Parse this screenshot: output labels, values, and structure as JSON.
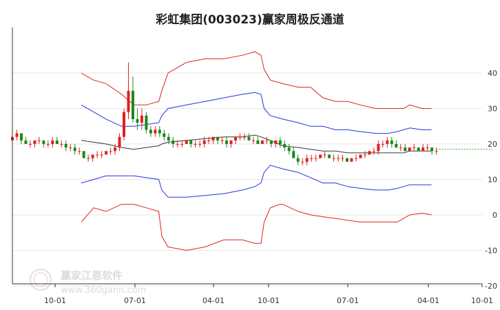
{
  "chart_data": {
    "type": "line",
    "title": "彩虹集团(003023)赢家周极反通道",
    "x_tick_labels": [
      "10-01",
      "07-01",
      "04-01",
      "10-01",
      "07-01",
      "04-01",
      "10-01"
    ],
    "y_ticks": [
      40,
      30,
      20,
      10,
      0,
      -10,
      -20
    ],
    "y_tick_labels": [
      "40",
      "30",
      "20",
      "10",
      "0",
      "-10",
      "-20"
    ],
    "ylim": [
      -20,
      46
    ],
    "grid": true,
    "current_price": 18.5,
    "watermark": {
      "name": "赢家江恩软件",
      "url": "www.360gann.com"
    },
    "series": [
      {
        "color": "#e02020",
        "points": [
          [
            0,
            40
          ],
          [
            4,
            38
          ],
          [
            8,
            37
          ],
          [
            13,
            34
          ],
          [
            17,
            31
          ],
          [
            21,
            31
          ],
          [
            25,
            32
          ],
          [
            26,
            35
          ],
          [
            28,
            40
          ],
          [
            34,
            43
          ],
          [
            40,
            44
          ],
          [
            46,
            44
          ],
          [
            52,
            45
          ],
          [
            54,
            45.5
          ],
          [
            56,
            46
          ],
          [
            58,
            45
          ],
          [
            59,
            41
          ],
          [
            61,
            38
          ],
          [
            65,
            37
          ],
          [
            70,
            36
          ],
          [
            74,
            36
          ],
          [
            78,
            33
          ],
          [
            82,
            32
          ],
          [
            86,
            32
          ],
          [
            90,
            31
          ],
          [
            95,
            30
          ],
          [
            99,
            30
          ],
          [
            102,
            30
          ],
          [
            104,
            30
          ],
          [
            106,
            31
          ],
          [
            110,
            30
          ],
          [
            113,
            30
          ]
        ]
      },
      {
        "color": "#2233dd",
        "points": [
          [
            0,
            31
          ],
          [
            4,
            29
          ],
          [
            8,
            27
          ],
          [
            13,
            25
          ],
          [
            17,
            25
          ],
          [
            21,
            25.5
          ],
          [
            25,
            26
          ],
          [
            26,
            28
          ],
          [
            28,
            30
          ],
          [
            34,
            31
          ],
          [
            40,
            32
          ],
          [
            46,
            33
          ],
          [
            52,
            34
          ],
          [
            56,
            34.5
          ],
          [
            58,
            34
          ],
          [
            59,
            30
          ],
          [
            61,
            28
          ],
          [
            65,
            27
          ],
          [
            70,
            26
          ],
          [
            74,
            25
          ],
          [
            78,
            25
          ],
          [
            82,
            24
          ],
          [
            86,
            24
          ],
          [
            90,
            23.5
          ],
          [
            95,
            23
          ],
          [
            99,
            23
          ],
          [
            102,
            23.5
          ],
          [
            104,
            24
          ],
          [
            106,
            24.5
          ],
          [
            110,
            24
          ],
          [
            113,
            24
          ]
        ]
      },
      {
        "color": "#333333",
        "points": [
          [
            0,
            21
          ],
          [
            4,
            20.5
          ],
          [
            8,
            20
          ],
          [
            13,
            19
          ],
          [
            17,
            18.5
          ],
          [
            21,
            19
          ],
          [
            25,
            19.5
          ],
          [
            26,
            20
          ],
          [
            28,
            20.5
          ],
          [
            34,
            21
          ],
          [
            40,
            21.5
          ],
          [
            46,
            22
          ],
          [
            52,
            22
          ],
          [
            56,
            22.5
          ],
          [
            58,
            22
          ],
          [
            61,
            21
          ],
          [
            65,
            19.5
          ],
          [
            70,
            19
          ],
          [
            74,
            18.5
          ],
          [
            78,
            18
          ],
          [
            82,
            18
          ],
          [
            86,
            17.5
          ],
          [
            90,
            17.5
          ],
          [
            95,
            17.5
          ],
          [
            99,
            17.5
          ],
          [
            102,
            17.5
          ],
          [
            104,
            17.5
          ],
          [
            106,
            18
          ],
          [
            110,
            18
          ],
          [
            113,
            18
          ]
        ]
      },
      {
        "color": "#2233dd",
        "points": [
          [
            0,
            9
          ],
          [
            4,
            10
          ],
          [
            8,
            11
          ],
          [
            13,
            11
          ],
          [
            17,
            11
          ],
          [
            21,
            10.5
          ],
          [
            25,
            10
          ],
          [
            26,
            7
          ],
          [
            28,
            5
          ],
          [
            34,
            5
          ],
          [
            40,
            5.5
          ],
          [
            46,
            6
          ],
          [
            52,
            7
          ],
          [
            56,
            8
          ],
          [
            58,
            9
          ],
          [
            59,
            12
          ],
          [
            61,
            14
          ],
          [
            65,
            13
          ],
          [
            70,
            12
          ],
          [
            74,
            10.5
          ],
          [
            78,
            9
          ],
          [
            82,
            9
          ],
          [
            86,
            8
          ],
          [
            90,
            7.5
          ],
          [
            95,
            7
          ],
          [
            99,
            7
          ],
          [
            102,
            7.5
          ],
          [
            104,
            8
          ],
          [
            106,
            8.5
          ],
          [
            110,
            8.5
          ],
          [
            113,
            8.5
          ]
        ]
      },
      {
        "color": "#e02020",
        "points": [
          [
            0,
            -2
          ],
          [
            4,
            2
          ],
          [
            8,
            1
          ],
          [
            13,
            3
          ],
          [
            17,
            3
          ],
          [
            21,
            2
          ],
          [
            25,
            1
          ],
          [
            26,
            -6
          ],
          [
            28,
            -9
          ],
          [
            34,
            -10
          ],
          [
            40,
            -9
          ],
          [
            46,
            -7
          ],
          [
            52,
            -7
          ],
          [
            56,
            -8
          ],
          [
            58,
            -8
          ],
          [
            59,
            -2
          ],
          [
            61,
            2
          ],
          [
            64,
            3
          ],
          [
            65,
            3
          ],
          [
            70,
            1
          ],
          [
            74,
            0
          ],
          [
            78,
            -0.5
          ],
          [
            82,
            -1
          ],
          [
            86,
            -1.5
          ],
          [
            90,
            -2
          ],
          [
            95,
            -2
          ],
          [
            99,
            -2
          ],
          [
            102,
            -2
          ],
          [
            104,
            -1
          ],
          [
            106,
            0
          ],
          [
            110,
            0.5
          ],
          [
            113,
            0
          ]
        ]
      }
    ],
    "candles": [
      [
        0,
        21,
        23,
        20,
        22
      ],
      [
        1,
        22,
        24,
        21,
        23
      ],
      [
        2,
        23,
        23,
        20,
        21
      ],
      [
        3,
        21,
        22,
        20,
        20
      ],
      [
        4,
        20,
        21,
        19,
        20
      ],
      [
        5,
        20,
        21,
        19,
        21
      ],
      [
        6,
        21,
        22,
        20,
        21
      ],
      [
        7,
        21,
        21,
        19,
        20
      ],
      [
        8,
        20,
        21,
        19,
        20
      ],
      [
        9,
        20,
        22,
        19,
        21
      ],
      [
        10,
        21,
        22,
        20,
        20
      ],
      [
        11,
        20,
        21,
        19,
        20
      ],
      [
        12,
        20,
        21,
        18,
        19
      ],
      [
        13,
        19,
        20,
        18,
        19
      ],
      [
        14,
        19,
        20,
        17,
        18
      ],
      [
        15,
        18,
        19,
        17,
        18
      ],
      [
        16,
        18,
        18,
        16,
        16
      ],
      [
        17,
        16,
        17,
        15,
        16
      ],
      [
        18,
        16,
        17,
        15,
        17
      ],
      [
        19,
        17,
        18,
        16,
        17
      ],
      [
        20,
        17,
        18,
        16,
        17
      ],
      [
        21,
        17,
        18,
        17,
        18
      ],
      [
        22,
        18,
        19,
        17,
        18
      ],
      [
        23,
        18,
        20,
        17,
        19
      ],
      [
        24,
        19,
        23,
        18,
        22
      ],
      [
        25,
        22,
        30,
        21,
        29
      ],
      [
        26,
        29,
        43,
        27,
        35
      ],
      [
        27,
        35,
        39,
        26,
        27
      ],
      [
        28,
        27,
        30,
        24,
        26
      ],
      [
        29,
        26,
        30,
        24,
        28
      ],
      [
        30,
        28,
        29,
        23,
        24
      ],
      [
        31,
        24,
        25,
        22,
        23
      ],
      [
        32,
        23,
        25,
        22,
        24
      ],
      [
        33,
        24,
        25,
        22,
        23
      ],
      [
        34,
        23,
        24,
        21,
        22
      ],
      [
        35,
        22,
        23,
        20,
        21
      ],
      [
        36,
        21,
        22,
        19,
        20
      ],
      [
        37,
        20,
        21,
        19,
        20
      ],
      [
        38,
        20,
        21,
        19,
        20
      ],
      [
        39,
        20,
        21,
        20,
        21
      ],
      [
        40,
        21,
        21,
        19,
        20
      ],
      [
        41,
        20,
        21,
        19,
        20
      ],
      [
        42,
        20,
        21,
        19,
        20
      ],
      [
        43,
        20,
        22,
        19,
        21
      ],
      [
        44,
        21,
        22,
        20,
        21
      ],
      [
        45,
        21,
        22,
        20,
        22
      ],
      [
        46,
        22,
        22,
        20,
        21
      ],
      [
        47,
        21,
        22,
        20,
        21
      ],
      [
        48,
        21,
        22,
        19,
        20
      ],
      [
        49,
        20,
        21,
        19,
        21
      ],
      [
        50,
        21,
        22,
        20,
        22
      ],
      [
        51,
        22,
        23,
        21,
        22
      ],
      [
        52,
        22,
        23,
        21,
        22
      ],
      [
        53,
        22,
        23,
        21,
        21
      ],
      [
        54,
        21,
        22,
        20,
        21
      ],
      [
        55,
        21,
        22,
        20,
        20
      ],
      [
        56,
        20,
        21,
        20,
        21
      ],
      [
        57,
        21,
        22,
        20,
        21
      ],
      [
        58,
        21,
        21,
        19,
        20
      ],
      [
        59,
        20,
        21,
        19,
        21
      ],
      [
        60,
        21,
        22,
        19,
        20
      ],
      [
        61,
        20,
        21,
        18,
        19
      ],
      [
        62,
        19,
        20,
        17,
        18
      ],
      [
        63,
        18,
        19,
        16,
        16
      ],
      [
        64,
        16,
        17,
        14,
        15
      ],
      [
        65,
        15,
        16,
        14,
        15
      ],
      [
        66,
        15,
        17,
        14,
        16
      ],
      [
        67,
        16,
        17,
        15,
        16
      ],
      [
        68,
        16,
        17,
        15,
        16
      ],
      [
        69,
        16,
        17,
        16,
        17
      ],
      [
        70,
        17,
        18,
        16,
        17
      ],
      [
        71,
        17,
        17,
        16,
        16
      ],
      [
        72,
        16,
        17,
        15,
        16
      ],
      [
        73,
        16,
        17,
        15,
        16
      ],
      [
        74,
        16,
        17,
        15,
        16
      ],
      [
        75,
        16,
        16,
        15,
        15
      ],
      [
        76,
        15,
        16,
        15,
        16
      ],
      [
        77,
        16,
        17,
        15,
        16
      ],
      [
        78,
        16,
        17,
        16,
        17
      ],
      [
        79,
        17,
        18,
        16,
        17
      ],
      [
        80,
        17,
        18,
        17,
        18
      ],
      [
        81,
        18,
        19,
        17,
        18
      ],
      [
        82,
        18,
        21,
        17,
        20
      ],
      [
        83,
        20,
        21,
        19,
        20
      ],
      [
        84,
        20,
        22,
        19,
        21
      ],
      [
        85,
        21,
        22,
        19,
        20
      ],
      [
        86,
        20,
        21,
        19,
        19
      ],
      [
        87,
        19,
        20,
        18,
        19
      ],
      [
        88,
        19,
        20,
        18,
        18
      ],
      [
        89,
        18,
        19,
        18,
        19
      ],
      [
        90,
        19,
        20,
        18,
        19
      ],
      [
        91,
        19,
        19,
        18,
        18
      ],
      [
        92,
        18,
        20,
        18,
        19
      ],
      [
        93,
        19,
        20,
        18,
        19
      ],
      [
        94,
        19,
        19,
        17,
        18
      ],
      [
        95,
        18,
        19,
        17,
        18
      ]
    ]
  }
}
